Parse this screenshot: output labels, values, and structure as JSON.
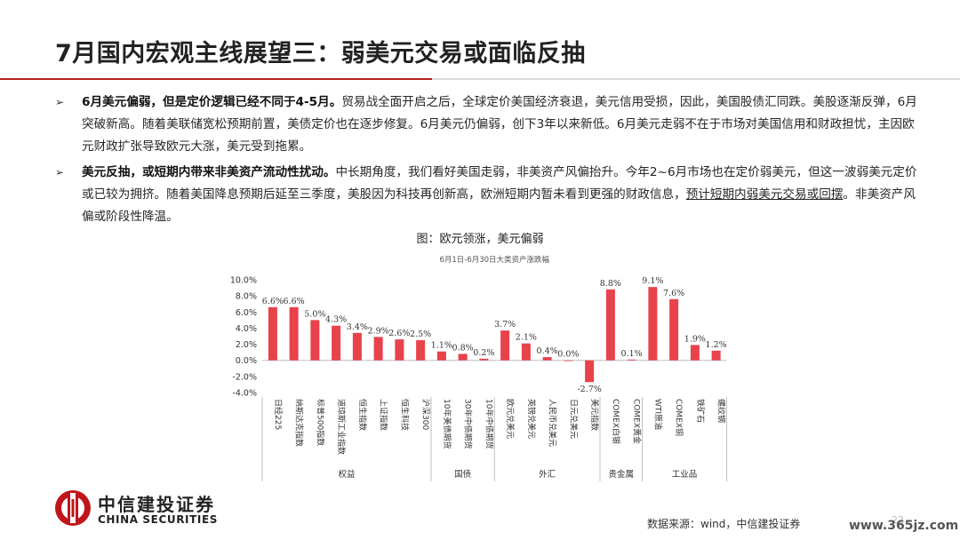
{
  "slide": {
    "title": "7月国内宏观主线展望三：弱美元交易或面临反抽",
    "page_number": "22"
  },
  "bullets": [
    {
      "bold": "6月美元偏弱，但是定价逻辑已经不同于4-5月。",
      "text": "贸易战全面开启之后，全球定价美国经济衰退，美元信用受损，因此，美国股债汇同跌。美股逐渐反弹，6月突破新高。随着美联储宽松预期前置，美债定价也在逐步修复。6月美元仍偏弱，创下3年以来新低。6月美元走弱不在于市场对美国信用和财政担忧，主因欧元财政扩张导致欧元大涨，美元受到拖累。",
      "underlined": "",
      "tail": ""
    },
    {
      "bold": "美元反抽，或短期内带来非美资产流动性扰动。",
      "text": "中长期角度，我们看好美国走弱，非美资产风偏抬升。今年2~6月市场也在定价弱美元，但这一波弱美元定价或已较为拥挤。随着美国降息预期后延至三季度，美股因为科技再创新高，欧洲短期内暂未看到更强的财政信息，",
      "underlined": "预计短期内弱美元交易或回摆",
      "tail": "。非美资产风偏或阶段性降温。"
    }
  ],
  "figure": {
    "title": "图：欧元领涨，美元偏弱"
  },
  "chart_data": {
    "type": "bar",
    "title": "6月1日-6月30日大类资产涨跌幅",
    "bar_color": "#e8424a",
    "ylim": [
      -4.0,
      10.0
    ],
    "yticks": [
      "10.0%",
      "8.0%",
      "6.0%",
      "4.0%",
      "2.0%",
      "0.0%",
      "-2.0%",
      "-4.0%"
    ],
    "categories": [
      "日经225",
      "纳斯达克指数",
      "标普500指数",
      "道琼斯工业指数",
      "恒生指数",
      "上证指数",
      "恒生科技",
      "沪深300",
      "10年美债期货",
      "30年中债期货",
      "10年中债期货",
      "欧元兑美元",
      "英镑兑美元",
      "人民币兑美元",
      "日元兑美元",
      "美元指数",
      "COMEX白银",
      "COMEX黄金",
      "WTI原油",
      "COMEX铜",
      "铁矿石",
      "螺纹钢"
    ],
    "values": [
      6.6,
      6.6,
      5.0,
      4.3,
      3.4,
      2.9,
      2.6,
      2.5,
      1.1,
      0.8,
      0.2,
      3.7,
      2.1,
      0.4,
      0.0,
      -2.7,
      8.8,
      0.1,
      9.1,
      7.6,
      1.9,
      1.2
    ],
    "value_labels": [
      "6.6%",
      "6.6%",
      "5.0%",
      "4.3%",
      "3.4%",
      "2.9%",
      "2.6%",
      "2.5%",
      "1.1%",
      "0.8%",
      "0.2%",
      "3.7%",
      "2.1%",
      "0.4%",
      "0.0%",
      "-2.7%",
      "8.8%",
      "0.1%",
      "9.1%",
      "7.6%",
      "1.9%",
      "1.2%"
    ],
    "groups": [
      {
        "name": "权益",
        "start": 0,
        "end": 7
      },
      {
        "name": "国债",
        "start": 8,
        "end": 10
      },
      {
        "name": "外汇",
        "start": 11,
        "end": 15
      },
      {
        "name": "贵金属",
        "start": 16,
        "end": 17
      },
      {
        "name": "工业品",
        "start": 18,
        "end": 21
      }
    ]
  },
  "footer": {
    "company_cn": "中信建投证券",
    "company_en": "CHINA SECURITIES",
    "source": "数据来源：wind，中信建投证券",
    "watermark": "www.365jz.com"
  },
  "colors": {
    "brand_red": "#b22222",
    "bar": "#e8424a"
  }
}
